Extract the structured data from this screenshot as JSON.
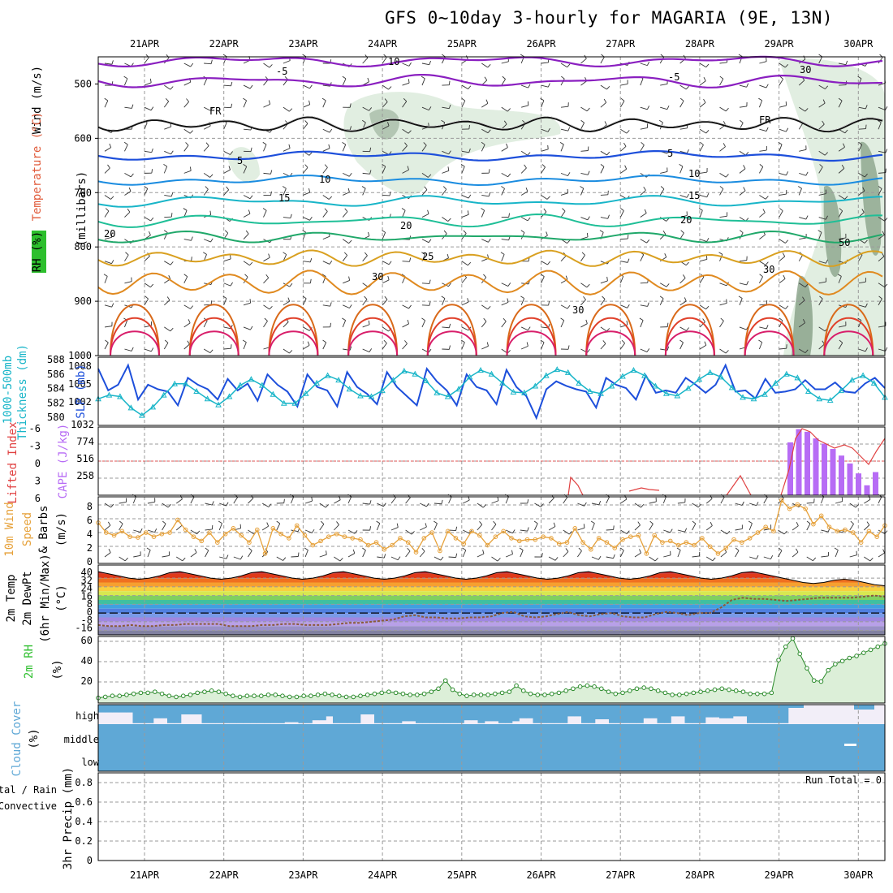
{
  "title": "GFS 0~10day 3-hourly for MAGARIA (9E, 13N)",
  "dates": [
    "21APR",
    "22APR",
    "23APR",
    "24APR",
    "25APR",
    "26APR",
    "27APR",
    "28APR",
    "29APR",
    "30APR"
  ],
  "colors": {
    "purple": "#8a1fc0",
    "blue": "#1d4fdb",
    "cyan": "#18b5c8",
    "orange": "#e6a13a",
    "green": "#2fbf2f",
    "cloud": "#5fa8d6",
    "red": "#dd2222"
  },
  "chart_data": [
    {
      "type": "line",
      "panel": "upper-air",
      "ylabel_parts": [
        "Wind (m/s)",
        "Temperature (°C)",
        "RH (%)"
      ],
      "yunit": "(millibars)",
      "yticks": [
        500,
        600,
        700,
        800,
        900,
        1000
      ],
      "ylim": [
        1000,
        450
      ],
      "isotherm_labels": [
        "-5",
        "-5",
        "FR",
        "FR",
        "5",
        "5",
        "10",
        "10",
        "15",
        "15",
        "20",
        "20",
        "20",
        "25",
        "30",
        "30",
        "30",
        "10",
        "30",
        "50"
      ]
    },
    {
      "type": "line",
      "panel": "thickness-slp",
      "ylabel_left": "1000-500mb Thickness (dm)",
      "ylabel_right": "SLP (mb)",
      "yticks_left": [
        "588",
        "586",
        "584",
        "582",
        "580"
      ],
      "yticks_right": [
        "1008",
        "1005",
        "1002"
      ],
      "series": [
        {
          "name": "SLP (mb)",
          "values": [
            1008.2,
            1004.4,
            1005.4,
            1008.8,
            1002.8,
            1005.4,
            1004.6,
            1004.2,
            1001.8,
            1006.6,
            1005.4,
            1004.6,
            1002.8,
            1006.4,
            1004.4,
            1005.6,
            1002.6,
            1007.2,
            1005.4,
            1004.2,
            1001.6,
            1007.2,
            1005.0,
            1004.4,
            1001.6,
            1007.6,
            1005.0,
            1003.8,
            1002.0,
            1007.6,
            1005.0,
            1003.4,
            1001.8,
            1008.2,
            1006.0,
            1004.4,
            1001.8,
            1007.2,
            1005.0,
            1004.4,
            1002.0,
            1008.0,
            1005.0,
            1003.4,
            999.6,
            1004.6,
            1006.0,
            1005.2,
            1004.6,
            1004.2,
            1001.4,
            1006.6,
            1005.4,
            1004.8,
            1002.8,
            1007.0,
            1004.0,
            1004.4,
            1004.0,
            1006.6,
            1005.4,
            1004.0,
            1005.4,
            1008.8,
            1004.2,
            1004.4,
            1003.0,
            1006.4,
            1004.0,
            1004.2,
            1004.6,
            1006.2,
            1004.6,
            1004.6,
            1005.8,
            1004.2,
            1004.0,
            1005.6,
            1006.6,
            1004.8
          ]
        },
        {
          "name": "1000-500mb Thickness (dm)",
          "values": [
            582.5,
            583.0,
            582.8,
            581.3,
            580.3,
            581.4,
            583.0,
            584.5,
            584.5,
            583.5,
            582.5,
            581.7,
            582.8,
            584.3,
            585.1,
            584.3,
            583.1,
            581.9,
            581.9,
            583.2,
            584.6,
            585.6,
            585.0,
            583.8,
            582.9,
            582.8,
            583.6,
            585.0,
            586.2,
            585.8,
            584.9,
            583.3,
            582.8,
            583.8,
            585.4,
            586.3,
            585.8,
            584.6,
            583.4,
            583.3,
            584.2,
            585.6,
            586.4,
            586.0,
            584.6,
            583.5,
            583.2,
            584.2,
            585.5,
            586.3,
            585.6,
            584.2,
            583.2,
            582.9,
            583.9,
            585.1,
            586.0,
            585.4,
            584.0,
            582.7,
            582.5,
            583.1,
            584.6,
            585.8,
            585.3,
            583.5,
            582.5,
            582.3,
            583.6,
            585.0,
            585.6,
            584.6,
            582.7
          ]
        }
      ]
    },
    {
      "type": "bar",
      "panel": "lifted-cape",
      "ylabel_left": "Lifted Index",
      "ylabel_right": "CAPE (J/kg)",
      "yticks_left": [
        "-6",
        "-3",
        "0",
        "3",
        "6"
      ],
      "yticks_right": [
        "1032",
        "774",
        "516",
        "258"
      ],
      "cape_last_day": [
        800,
        1000,
        960,
        860,
        780,
        700,
        600,
        480,
        330,
        150,
        350
      ]
    },
    {
      "type": "line",
      "panel": "wind10m",
      "ylabel": "10m Wind Speed & Barbs (m/s)",
      "ylabel_parts": [
        "10m Wind",
        "Speed",
        "& Barbs",
        "(m/s)"
      ],
      "yticks": [
        "8",
        "6",
        "4",
        "2",
        "0"
      ],
      "ylim": [
        0,
        9.5
      ],
      "values": [
        5.8,
        4.4,
        4.0,
        4.6,
        3.8,
        3.7,
        4.4,
        3.8,
        4.2,
        4.4,
        6.2,
        4.8,
        3.8,
        3.2,
        4.4,
        3.0,
        4.2,
        5.0,
        4.0,
        3.0,
        4.8,
        1.4,
        5.0,
        4.2,
        3.6,
        5.4,
        4.0,
        2.6,
        3.2,
        3.8,
        4.2,
        3.8,
        3.6,
        3.4,
        2.6,
        3.0,
        2.0,
        2.6,
        3.6,
        3.0,
        1.6,
        3.6,
        4.4,
        1.8,
        4.6,
        3.6,
        2.8,
        4.6,
        4.0,
        2.6,
        3.8,
        4.6,
        3.6,
        3.2,
        3.4,
        3.4,
        3.8,
        3.6,
        2.8,
        3.0,
        5.0,
        3.0,
        2.0,
        3.6,
        3.0,
        2.2,
        3.4,
        3.8,
        4.0,
        1.4,
        4.0,
        3.0,
        3.2,
        2.6,
        3.0,
        2.6,
        3.6,
        2.4,
        1.4,
        2.2,
        3.4,
        3.0,
        3.6,
        4.4,
        5.2,
        4.6,
        9.0,
        7.8,
        8.4,
        7.8,
        5.6,
        6.8,
        5.2,
        4.6,
        4.8,
        4.4,
        3.0,
        4.6,
        3.8,
        5.4
      ]
    },
    {
      "type": "area",
      "panel": "temp-dewpt",
      "ylabel_parts": [
        "2m Temp",
        "2m DewPt",
        "(6hr Min/Max)",
        "(°C)"
      ],
      "yticks": [
        "40",
        "32",
        "24",
        "16",
        "8",
        "0",
        "-8",
        "-16"
      ],
      "ylim": [
        -20,
        44
      ],
      "temp_values": [
        38,
        36,
        34,
        32,
        31,
        32,
        34,
        37,
        38,
        36,
        34,
        32,
        31,
        32,
        34,
        37,
        38,
        36,
        34,
        32,
        31,
        32,
        34,
        37,
        38,
        36,
        34,
        32,
        31,
        32,
        34,
        37,
        38,
        36,
        34,
        32,
        31,
        32,
        34,
        37,
        38,
        36,
        34,
        32,
        31,
        32,
        34,
        37,
        38,
        36,
        34,
        32,
        31,
        32,
        34,
        37,
        38,
        36,
        34,
        32,
        31,
        32,
        34,
        37,
        38,
        36,
        34,
        32,
        30,
        28,
        27,
        28,
        30,
        31,
        30,
        28,
        26,
        25
      ],
      "dewpt_values": [
        -11,
        -12,
        -12,
        -11,
        -12,
        -12,
        -11,
        -11,
        -10,
        -10,
        -10,
        -10,
        -12,
        -12,
        -12,
        -11,
        -11,
        -10,
        -10,
        -11,
        -11,
        -11,
        -10,
        -9,
        -9,
        -8,
        -7,
        -6,
        -3,
        -2,
        -4,
        -4,
        -5,
        -5,
        -4,
        -4,
        -3,
        0,
        1,
        -3,
        -4,
        -3,
        -1,
        1,
        -2,
        -3,
        -1,
        0,
        -3,
        -4,
        -4,
        -1,
        1,
        0,
        -2,
        0,
        0,
        5,
        12,
        14,
        13,
        13,
        12,
        11,
        12,
        13,
        14,
        14,
        14,
        14,
        15,
        16,
        15
      ]
    },
    {
      "type": "area",
      "panel": "rh2m",
      "ylabel": "2m RH",
      "yunit": "(%)",
      "yticks": [
        "60",
        "40",
        "20"
      ],
      "ylim": [
        0,
        65
      ],
      "values": [
        5,
        6,
        7,
        7,
        8,
        9,
        10,
        10,
        11,
        9,
        7,
        6,
        7,
        8,
        10,
        11,
        12,
        11,
        9,
        7,
        6,
        7,
        7,
        7,
        8,
        8,
        7,
        6,
        6,
        7,
        7,
        8,
        9,
        8,
        7,
        6,
        6,
        7,
        8,
        9,
        10,
        11,
        10,
        9,
        8,
        8,
        9,
        11,
        14,
        22,
        13,
        9,
        7,
        8,
        8,
        8,
        9,
        10,
        11,
        17,
        12,
        9,
        8,
        8,
        9,
        10,
        12,
        14,
        16,
        17,
        16,
        14,
        11,
        9,
        10,
        12,
        14,
        15,
        14,
        12,
        10,
        8,
        8,
        9,
        10,
        11,
        12,
        13,
        14,
        13,
        12,
        11,
        9,
        9,
        9,
        10,
        42,
        55,
        63,
        48,
        34,
        22,
        21,
        32,
        38,
        41,
        44,
        46,
        49,
        52,
        55,
        58
      ]
    },
    {
      "type": "bar",
      "panel": "cloud",
      "ylabel": "Cloud Cover",
      "yunit": "(%)",
      "level_labels": [
        "high",
        "middle",
        "low"
      ],
      "high_values": [
        40,
        40,
        40,
        40,
        40,
        95,
        95,
        95,
        70,
        70,
        95,
        95,
        50,
        50,
        50,
        95,
        95,
        95,
        95,
        95,
        95,
        95,
        95,
        95,
        95,
        95,
        95,
        90,
        90,
        95,
        95,
        80,
        80,
        60,
        95,
        95,
        95,
        95,
        50,
        50,
        95,
        95,
        95,
        95,
        85,
        85,
        95,
        95,
        95,
        95,
        95,
        95,
        95,
        80,
        80,
        95,
        85,
        85,
        95,
        95,
        85,
        70,
        70,
        95,
        95,
        95,
        95,
        95,
        60,
        60,
        95,
        95,
        75,
        75,
        95,
        95,
        95,
        95,
        95,
        70,
        70,
        95,
        95,
        60,
        60,
        95,
        95,
        95,
        65,
        65,
        70,
        70,
        60,
        60,
        95,
        95,
        95,
        95,
        95,
        95,
        95,
        95,
        95,
        95,
        95,
        95,
        95,
        95,
        95,
        95,
        95,
        95,
        95,
        95
      ]
    },
    {
      "type": "bar",
      "panel": "precip",
      "ylabel": "3hr Precip (mm)",
      "legend": [
        "Total / Rain",
        "Convective"
      ],
      "yticks": [
        "0.8",
        "0.6",
        "0.4",
        "0.2",
        "0"
      ],
      "ylim": [
        0,
        0.9
      ],
      "run_total": "Run Total = 0"
    }
  ]
}
